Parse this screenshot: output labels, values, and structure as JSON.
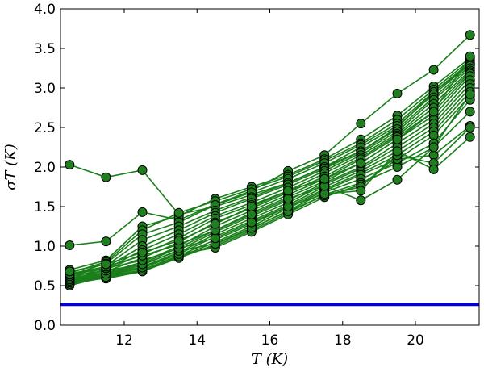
{
  "chart_data": {
    "type": "line",
    "xlabel": "T (K)",
    "ylabel": "σT (K)",
    "xlim": [
      10.25,
      21.75
    ],
    "ylim": [
      0.0,
      4.0
    ],
    "xticks": [
      "12",
      "14",
      "16",
      "18",
      "20"
    ],
    "xtick_values": [
      12,
      14,
      16,
      18,
      20
    ],
    "yticks": [
      "0.0",
      "0.5",
      "1.0",
      "1.5",
      "2.0",
      "2.5",
      "3.0",
      "3.5",
      "4.0"
    ],
    "ytick_values": [
      0.0,
      0.5,
      1.0,
      1.5,
      2.0,
      2.5,
      3.0,
      3.5,
      4.0
    ],
    "x": [
      10.5,
      11.5,
      12.5,
      13.5,
      14.5,
      15.5,
      16.5,
      17.5,
      18.5,
      19.5,
      20.5,
      21.5
    ],
    "series_color": "#1a7f1a",
    "marker_color": "#1f7f1f",
    "reference_line": {
      "y": 0.26,
      "color": "#0000dd"
    },
    "grid": false,
    "series": [
      {
        "values": [
          2.03,
          1.87,
          1.96,
          1.4,
          1.5,
          1.65,
          1.8,
          2.0,
          2.2,
          2.5,
          2.95,
          3.3
        ]
      },
      {
        "values": [
          1.01,
          1.06,
          1.43,
          1.33,
          1.53,
          1.7,
          1.95,
          2.15,
          2.55,
          2.93,
          3.23,
          3.67
        ]
      },
      {
        "values": [
          0.7,
          0.82,
          1.25,
          1.38,
          1.6,
          1.75,
          1.9,
          2.1,
          2.35,
          2.65,
          3.02,
          3.38
        ]
      },
      {
        "values": [
          0.66,
          0.8,
          1.2,
          1.42,
          1.57,
          1.72,
          1.88,
          2.08,
          2.3,
          2.6,
          2.98,
          3.35
        ]
      },
      {
        "values": [
          0.63,
          0.78,
          1.15,
          1.3,
          1.52,
          1.68,
          1.85,
          2.05,
          2.28,
          2.55,
          2.95,
          3.32
        ]
      },
      {
        "values": [
          0.61,
          0.75,
          1.08,
          1.25,
          1.45,
          1.62,
          1.8,
          2.0,
          2.25,
          2.52,
          2.92,
          3.3
        ]
      },
      {
        "values": [
          0.59,
          0.73,
          1.0,
          1.2,
          1.42,
          1.6,
          1.78,
          1.98,
          2.2,
          2.48,
          2.88,
          3.28
        ]
      },
      {
        "values": [
          0.57,
          0.71,
          0.95,
          1.15,
          1.38,
          1.55,
          1.74,
          1.95,
          2.18,
          2.45,
          2.85,
          3.25
        ]
      },
      {
        "values": [
          0.56,
          0.7,
          0.9,
          1.1,
          1.35,
          1.52,
          1.7,
          1.92,
          2.15,
          2.42,
          2.8,
          3.22
        ]
      },
      {
        "values": [
          0.55,
          0.68,
          0.85,
          1.05,
          1.3,
          1.48,
          1.68,
          1.88,
          2.12,
          2.4,
          2.75,
          3.2
        ]
      },
      {
        "values": [
          0.54,
          0.66,
          0.8,
          1.0,
          1.25,
          1.45,
          1.65,
          1.85,
          2.1,
          2.38,
          2.7,
          3.18
        ]
      },
      {
        "values": [
          0.53,
          0.65,
          0.78,
          0.98,
          1.2,
          1.42,
          1.62,
          1.82,
          2.05,
          2.35,
          2.65,
          3.15
        ]
      },
      {
        "values": [
          0.52,
          0.64,
          0.76,
          0.95,
          1.18,
          1.38,
          1.58,
          1.8,
          2.0,
          2.3,
          2.6,
          3.1
        ]
      },
      {
        "values": [
          0.51,
          0.63,
          0.74,
          0.92,
          1.15,
          1.35,
          1.55,
          1.78,
          1.98,
          2.25,
          2.55,
          3.05
        ]
      },
      {
        "values": [
          0.5,
          0.62,
          0.72,
          0.9,
          1.12,
          1.32,
          1.52,
          1.75,
          1.95,
          2.2,
          2.5,
          3.0
        ]
      },
      {
        "values": [
          0.52,
          0.6,
          0.7,
          0.88,
          1.08,
          1.28,
          1.5,
          1.72,
          1.92,
          2.15,
          2.45,
          2.95
        ]
      },
      {
        "values": [
          0.54,
          0.6,
          0.69,
          0.86,
          1.05,
          1.25,
          1.48,
          1.7,
          1.9,
          2.1,
          2.4,
          2.9
        ]
      },
      {
        "values": [
          0.56,
          0.59,
          0.68,
          0.85,
          1.02,
          1.22,
          1.45,
          1.68,
          1.85,
          2.05,
          2.3,
          2.85
        ]
      },
      {
        "values": [
          0.58,
          0.61,
          0.7,
          0.87,
          1.0,
          1.2,
          1.42,
          1.65,
          1.8,
          2.0,
          2.25,
          2.7
        ]
      },
      {
        "values": [
          0.6,
          0.65,
          0.73,
          0.9,
          0.98,
          1.18,
          1.4,
          1.62,
          1.78,
          2.1,
          2.15,
          2.52
        ]
      },
      {
        "values": [
          0.62,
          0.69,
          0.77,
          0.94,
          1.03,
          1.23,
          1.44,
          1.64,
          1.75,
          2.15,
          2.05,
          2.5
        ]
      },
      {
        "values": [
          0.64,
          0.72,
          0.82,
          0.97,
          1.1,
          1.3,
          1.5,
          1.66,
          1.7,
          2.2,
          1.97,
          2.38
        ]
      },
      {
        "values": [
          0.65,
          0.74,
          0.88,
          1.02,
          1.2,
          1.4,
          1.6,
          1.76,
          1.58,
          1.84,
          2.25,
          2.92
        ]
      },
      {
        "values": [
          0.68,
          0.77,
          0.92,
          1.07,
          1.28,
          1.5,
          1.7,
          1.85,
          2.05,
          2.35,
          2.7,
          3.4
        ]
      }
    ]
  }
}
